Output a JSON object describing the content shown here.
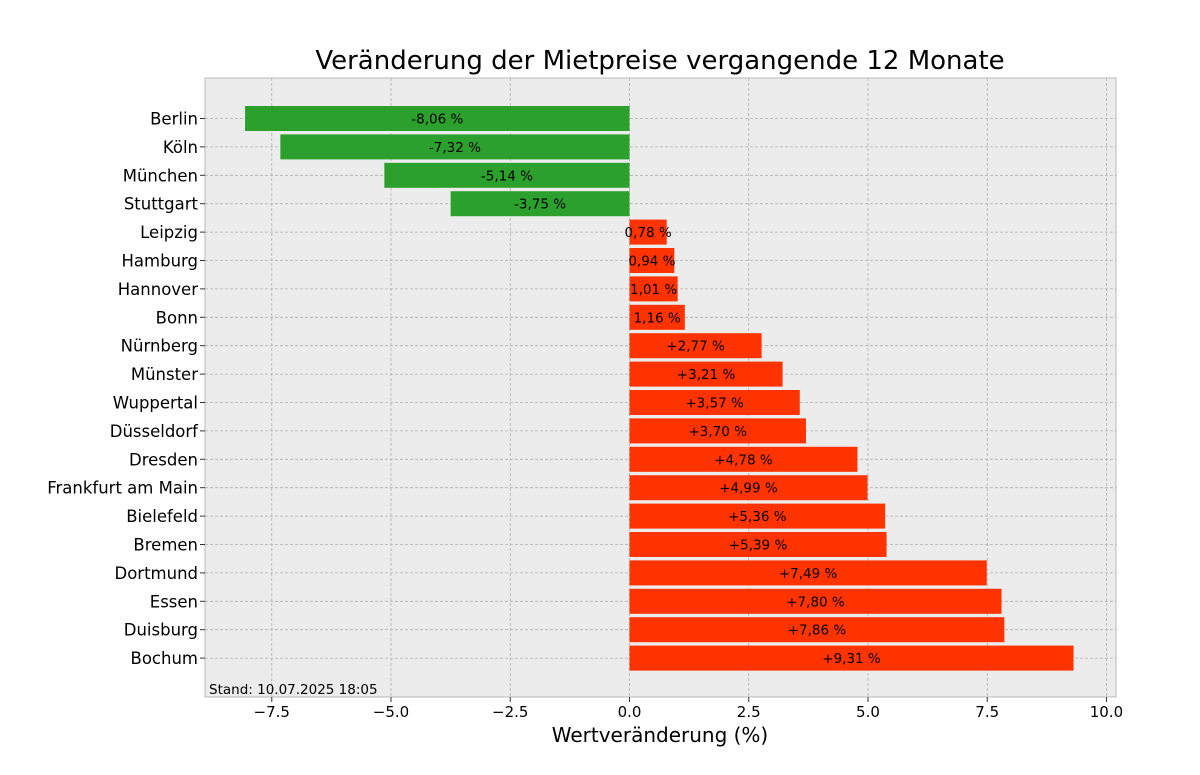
{
  "chart_data": {
    "type": "bar",
    "orientation": "horizontal",
    "title": "Veränderung der Mietpreise vergangende 12 Monate",
    "xlabel": "Wertveränderung (%)",
    "ylabel": "",
    "xlim": [
      -8.9,
      10.2
    ],
    "xticks": [
      -7.5,
      -5.0,
      -2.5,
      0.0,
      2.5,
      5.0,
      7.5,
      10.0
    ],
    "xtick_labels": [
      "−7.5",
      "−5.0",
      "−2.5",
      "0.0",
      "2.5",
      "5.0",
      "7.5",
      "10.0"
    ],
    "grid": true,
    "categories": [
      "Berlin",
      "Köln",
      "München",
      "Stuttgart",
      "Leipzig",
      "Hamburg",
      "Hannover",
      "Bonn",
      "Nürnberg",
      "Münster",
      "Wuppertal",
      "Düsseldorf",
      "Dresden",
      "Frankfurt am Main",
      "Bielefeld",
      "Bremen",
      "Dortmund",
      "Essen",
      "Duisburg",
      "Bochum"
    ],
    "values": [
      -8.06,
      -7.32,
      -5.14,
      -3.75,
      0.78,
      0.94,
      1.01,
      1.16,
      2.77,
      3.21,
      3.57,
      3.7,
      4.78,
      4.99,
      5.36,
      5.39,
      7.49,
      7.8,
      7.86,
      9.31
    ],
    "data_labels": [
      "-8,06 %",
      "-7,32 %",
      "-5,14 %",
      "-3,75 %",
      "0,78 %",
      "0,94 %",
      "1,01 %",
      "1,16 %",
      "+2,77 %",
      "+3,21 %",
      "+3,57 %",
      "+3,70 %",
      "+4,78 %",
      "+4,99 %",
      "+5,36 %",
      "+5,39 %",
      "+7,49 %",
      "+7,80 %",
      "+7,86 %",
      "+9,31 %"
    ],
    "colors": {
      "negative": "#2ca02c",
      "positive": "#ff3300",
      "background": "#ececec",
      "grid": "#b0b0b0"
    },
    "footnote": "Stand: 10.07.2025 18:05"
  }
}
